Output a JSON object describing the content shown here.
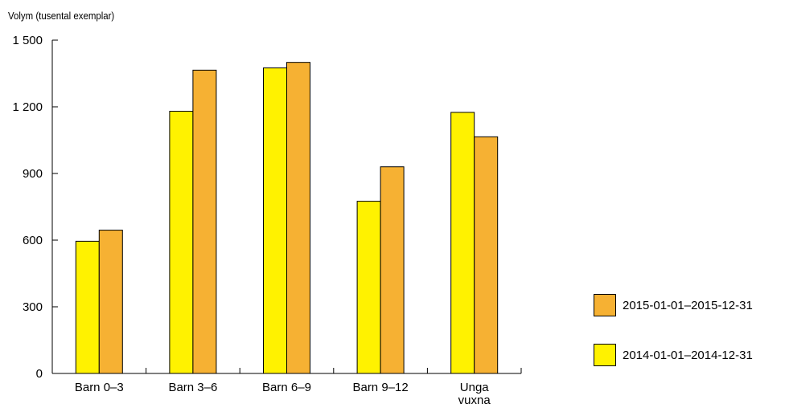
{
  "chart_data": {
    "type": "bar",
    "title": "",
    "xlabel": "",
    "ylabel": "Volym (tusental exemplar)",
    "categories": [
      [
        "Barn 0–3"
      ],
      [
        "Barn 3–6"
      ],
      [
        "Barn 6–9"
      ],
      [
        "Barn 9–12"
      ],
      [
        "Unga",
        "vuxna"
      ]
    ],
    "series": [
      {
        "name": "2014-01-01–2014-12-31",
        "color": "#fff200",
        "values": [
          595,
          1180,
          1375,
          775,
          1175
        ]
      },
      {
        "name": "2015-01-01–2015-12-31",
        "color": "#f6b133",
        "values": [
          645,
          1365,
          1400,
          930,
          1065
        ]
      }
    ],
    "ylim": [
      0,
      1500
    ],
    "yticks": [
      0,
      300,
      600,
      900,
      1200,
      1500
    ],
    "ytick_labels": [
      "0",
      "300",
      "600",
      "900",
      "1 200",
      "1 500"
    ],
    "grid": false,
    "legend": "right"
  },
  "legend_order": [
    1,
    0
  ]
}
